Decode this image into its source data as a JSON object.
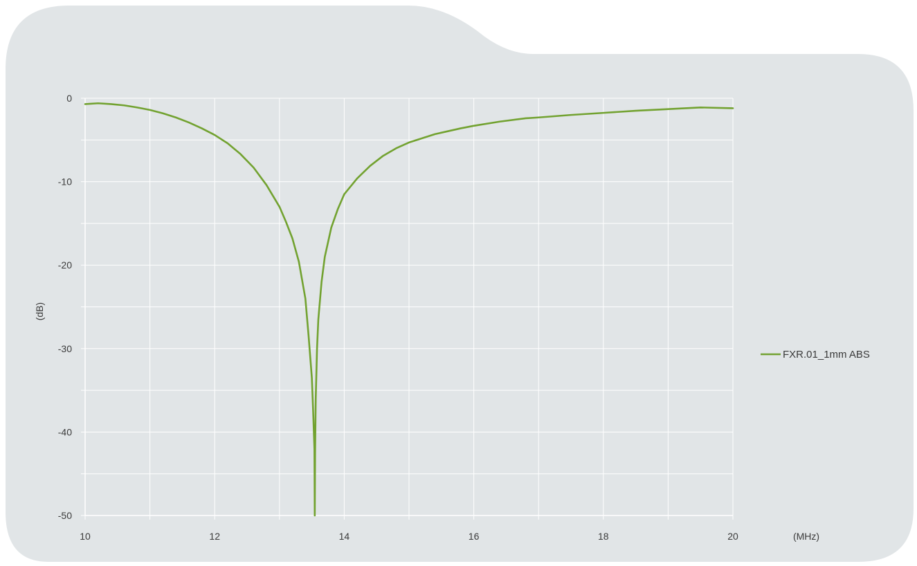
{
  "colors": {
    "background": "#e1e5e7",
    "grid": "#ffffff",
    "series": "#72a230",
    "text": "#3a3a3a"
  },
  "chart_data": {
    "type": "line",
    "title": "",
    "xlabel": "(MHz)",
    "ylabel": "(dB)",
    "xlim": [
      10,
      20
    ],
    "ylim": [
      -50,
      0
    ],
    "x_ticks": [
      10,
      12,
      14,
      16,
      18,
      20
    ],
    "y_ticks": [
      0,
      -10,
      -20,
      -30,
      -40,
      -50
    ],
    "grid": true,
    "legend_position": "right",
    "series": [
      {
        "name": "FXR.01_1mm ABS",
        "color": "#72a230",
        "x": [
          10.0,
          10.2,
          10.4,
          10.6,
          10.8,
          11.0,
          11.2,
          11.4,
          11.6,
          11.8,
          12.0,
          12.2,
          12.4,
          12.6,
          12.8,
          13.0,
          13.1,
          13.2,
          13.3,
          13.4,
          13.45,
          13.5,
          13.52,
          13.54,
          13.545,
          13.55,
          13.56,
          13.58,
          13.6,
          13.65,
          13.7,
          13.8,
          13.9,
          14.0,
          14.2,
          14.4,
          14.6,
          14.8,
          15.0,
          15.4,
          15.8,
          16.0,
          16.4,
          16.8,
          17.0,
          17.5,
          18.0,
          18.5,
          19.0,
          19.5,
          20.0
        ],
        "y": [
          -0.7,
          -0.6,
          -0.7,
          -0.85,
          -1.1,
          -1.4,
          -1.8,
          -2.3,
          -2.9,
          -3.6,
          -4.4,
          -5.4,
          -6.7,
          -8.3,
          -10.4,
          -13.0,
          -14.8,
          -16.8,
          -19.6,
          -24.0,
          -28.5,
          -33.5,
          -37.5,
          -42.0,
          -50.0,
          -42.5,
          -36.0,
          -30.0,
          -26.5,
          -22.0,
          -19.0,
          -15.5,
          -13.3,
          -11.5,
          -9.6,
          -8.1,
          -6.9,
          -6.0,
          -5.3,
          -4.3,
          -3.6,
          -3.3,
          -2.8,
          -2.4,
          -2.3,
          -2.0,
          -1.75,
          -1.5,
          -1.3,
          -1.1,
          -1.2
        ]
      }
    ]
  }
}
